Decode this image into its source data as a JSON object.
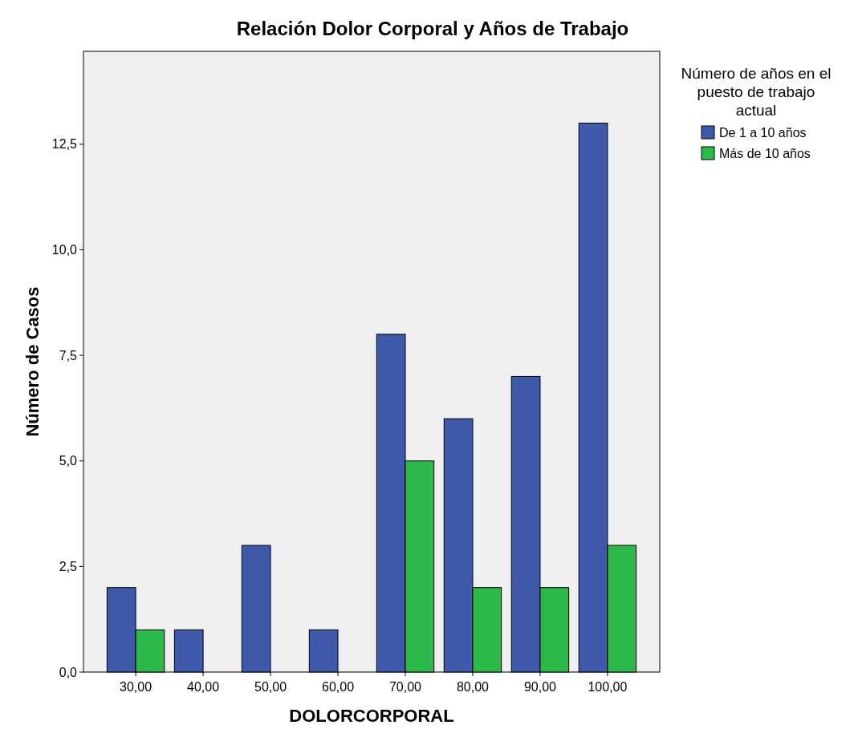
{
  "chart_data": {
    "type": "bar",
    "title": "Relación Dolor Corporal y Años de Trabajo",
    "xlabel": "DOLORCORPORAL",
    "ylabel": "Número de Casos",
    "legend_title": "Número de años en el puesto de trabajo actual",
    "categories": [
      "30,00",
      "40,00",
      "50,00",
      "60,00",
      "70,00",
      "80,00",
      "90,00",
      "100,00"
    ],
    "series": [
      {
        "name": "De 1 a 10  años",
        "color": "#3f59ab",
        "values": [
          2,
          1,
          3,
          1,
          8,
          6,
          7,
          13
        ]
      },
      {
        "name": "Más de 10 años",
        "color": "#2db84a",
        "values": [
          1,
          null,
          null,
          null,
          5,
          2,
          2,
          3
        ]
      }
    ],
    "ylim": [
      0,
      14.7
    ],
    "yticks": [
      {
        "value": 0,
        "label": "0,0"
      },
      {
        "value": 2.5,
        "label": "2,5"
      },
      {
        "value": 5,
        "label": "5,0"
      },
      {
        "value": 7.5,
        "label": "7,5"
      },
      {
        "value": 10,
        "label": "10,0"
      },
      {
        "value": 12.5,
        "label": "12,5"
      }
    ],
    "legend": "top right",
    "grid": false
  }
}
